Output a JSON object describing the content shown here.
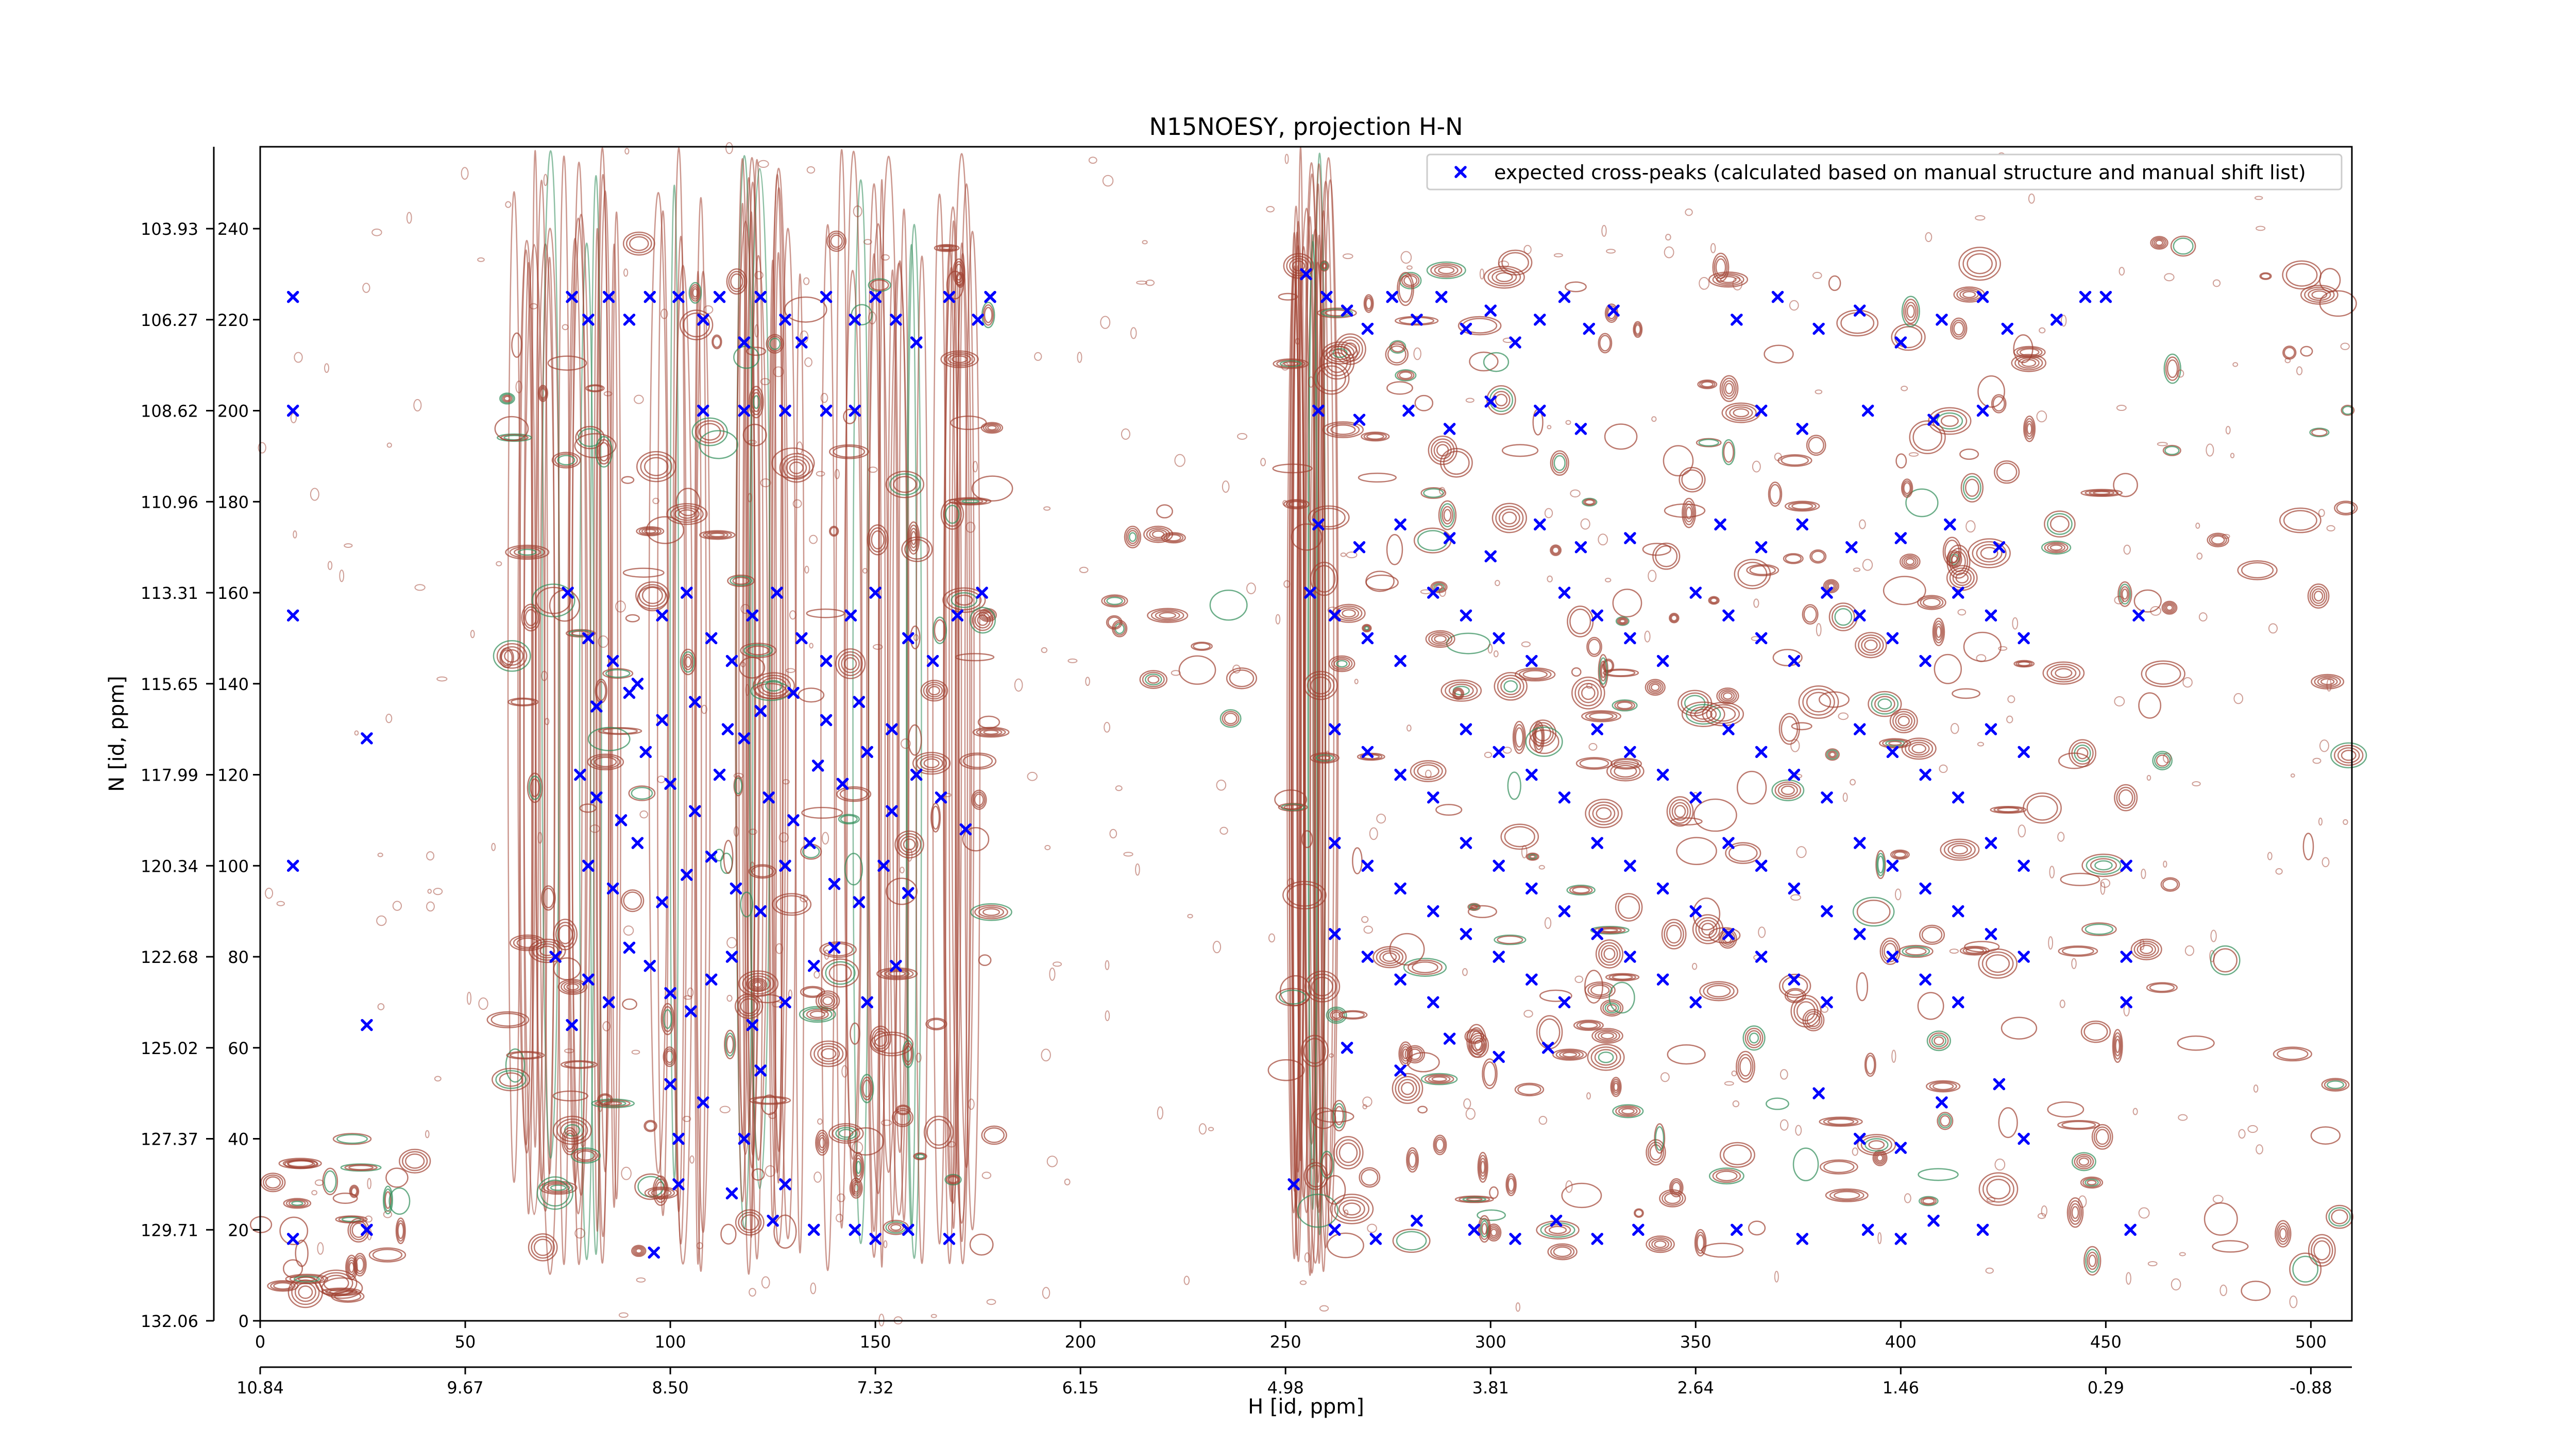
{
  "chart_data": {
    "type": "scatter",
    "title": "N15NOESY, projection H-N",
    "xlabel": "H [id, ppm]",
    "ylabel": "N [id, ppm]",
    "xlim": [
      0,
      510
    ],
    "ylim": [
      0,
      258
    ],
    "xticks_index": [
      "0",
      "50",
      "100",
      "150",
      "200",
      "250",
      "300",
      "350",
      "400",
      "450",
      "500"
    ],
    "xticks_ppm": [
      "10.84",
      "9.67",
      "8.50",
      "7.32",
      "6.15",
      "4.98",
      "3.81",
      "2.64",
      "1.46",
      "0.29",
      "-0.88"
    ],
    "yticks_index": [
      "0",
      "20",
      "40",
      "60",
      "80",
      "100",
      "120",
      "140",
      "160",
      "180",
      "200",
      "220",
      "240"
    ],
    "yticks_ppm": [
      "132.06",
      "129.71",
      "127.37",
      "125.02",
      "122.68",
      "120.34",
      "117.99",
      "115.65",
      "113.31",
      "110.96",
      "108.62",
      "106.27",
      "103.93"
    ],
    "legend": {
      "placement": "upper-right",
      "label": "expected cross-peaks (calculated based on manual structure and manual shift list)"
    },
    "grid": false,
    "background": "contour spectrum (positive levels brown, negative levels green)",
    "series": [
      {
        "name": "expected cross-peaks (calculated based on manual structure and manual shift list)",
        "marker": "x",
        "color": "#0000ff",
        "points": [
          [
            8,
            225
          ],
          [
            8,
            200
          ],
          [
            8,
            155
          ],
          [
            8,
            100
          ],
          [
            8,
            18
          ],
          [
            26,
            128
          ],
          [
            26,
            65
          ],
          [
            26,
            20
          ],
          [
            76,
            225
          ],
          [
            80,
            220
          ],
          [
            85,
            225
          ],
          [
            90,
            220
          ],
          [
            95,
            225
          ],
          [
            102,
            225
          ],
          [
            108,
            220
          ],
          [
            112,
            225
          ],
          [
            118,
            215
          ],
          [
            122,
            225
          ],
          [
            128,
            220
          ],
          [
            132,
            215
          ],
          [
            138,
            225
          ],
          [
            145,
            220
          ],
          [
            150,
            225
          ],
          [
            155,
            220
          ],
          [
            160,
            215
          ],
          [
            168,
            225
          ],
          [
            175,
            220
          ],
          [
            178,
            225
          ],
          [
            108,
            200
          ],
          [
            118,
            200
          ],
          [
            128,
            200
          ],
          [
            138,
            200
          ],
          [
            145,
            200
          ],
          [
            72,
            80
          ],
          [
            76,
            65
          ],
          [
            80,
            75
          ],
          [
            85,
            70
          ],
          [
            90,
            82
          ],
          [
            95,
            78
          ],
          [
            100,
            72
          ],
          [
            105,
            68
          ],
          [
            110,
            75
          ],
          [
            115,
            80
          ],
          [
            120,
            65
          ],
          [
            128,
            70
          ],
          [
            135,
            78
          ],
          [
            140,
            82
          ],
          [
            148,
            70
          ],
          [
            155,
            78
          ],
          [
            100,
            52
          ],
          [
            102,
            40
          ],
          [
            108,
            48
          ],
          [
            118,
            40
          ],
          [
            122,
            55
          ],
          [
            128,
            30
          ],
          [
            135,
            20
          ],
          [
            145,
            20
          ],
          [
            150,
            18
          ],
          [
            158,
            20
          ],
          [
            168,
            18
          ],
          [
            96,
            15
          ],
          [
            102,
            30
          ],
          [
            115,
            28
          ],
          [
            125,
            22
          ],
          [
            75,
            160
          ],
          [
            80,
            150
          ],
          [
            86,
            145
          ],
          [
            92,
            140
          ],
          [
            98,
            155
          ],
          [
            104,
            160
          ],
          [
            110,
            150
          ],
          [
            115,
            145
          ],
          [
            120,
            155
          ],
          [
            126,
            160
          ],
          [
            132,
            150
          ],
          [
            138,
            145
          ],
          [
            144,
            155
          ],
          [
            150,
            160
          ],
          [
            158,
            150
          ],
          [
            164,
            145
          ],
          [
            170,
            155
          ],
          [
            176,
            160
          ],
          [
            78,
            120
          ],
          [
            82,
            115
          ],
          [
            88,
            110
          ],
          [
            94,
            125
          ],
          [
            100,
            118
          ],
          [
            106,
            112
          ],
          [
            112,
            120
          ],
          [
            118,
            128
          ],
          [
            124,
            115
          ],
          [
            130,
            110
          ],
          [
            136,
            122
          ],
          [
            142,
            118
          ],
          [
            148,
            125
          ],
          [
            154,
            112
          ],
          [
            160,
            120
          ],
          [
            166,
            115
          ],
          [
            172,
            108
          ],
          [
            80,
            100
          ],
          [
            86,
            95
          ],
          [
            92,
            105
          ],
          [
            98,
            92
          ],
          [
            104,
            98
          ],
          [
            110,
            102
          ],
          [
            116,
            95
          ],
          [
            122,
            90
          ],
          [
            128,
            100
          ],
          [
            134,
            105
          ],
          [
            140,
            96
          ],
          [
            146,
            92
          ],
          [
            152,
            100
          ],
          [
            158,
            94
          ],
          [
            82,
            135
          ],
          [
            90,
            138
          ],
          [
            98,
            132
          ],
          [
            106,
            136
          ],
          [
            114,
            130
          ],
          [
            122,
            134
          ],
          [
            130,
            138
          ],
          [
            138,
            132
          ],
          [
            146,
            136
          ],
          [
            154,
            130
          ],
          [
            255,
            230
          ],
          [
            260,
            225
          ],
          [
            265,
            222
          ],
          [
            270,
            218
          ],
          [
            276,
            225
          ],
          [
            282,
            220
          ],
          [
            288,
            225
          ],
          [
            294,
            218
          ],
          [
            300,
            222
          ],
          [
            306,
            215
          ],
          [
            312,
            220
          ],
          [
            318,
            225
          ],
          [
            324,
            218
          ],
          [
            330,
            222
          ],
          [
            258,
            200
          ],
          [
            268,
            198
          ],
          [
            280,
            200
          ],
          [
            290,
            196
          ],
          [
            300,
            202
          ],
          [
            312,
            200
          ],
          [
            322,
            196
          ],
          [
            258,
            175
          ],
          [
            268,
            170
          ],
          [
            278,
            175
          ],
          [
            290,
            172
          ],
          [
            300,
            168
          ],
          [
            312,
            175
          ],
          [
            322,
            170
          ],
          [
            334,
            172
          ],
          [
            256,
            160
          ],
          [
            262,
            155
          ],
          [
            270,
            150
          ],
          [
            278,
            145
          ],
          [
            286,
            160
          ],
          [
            294,
            155
          ],
          [
            302,
            150
          ],
          [
            310,
            145
          ],
          [
            318,
            160
          ],
          [
            326,
            155
          ],
          [
            334,
            150
          ],
          [
            342,
            145
          ],
          [
            350,
            160
          ],
          [
            358,
            155
          ],
          [
            366,
            150
          ],
          [
            374,
            145
          ],
          [
            382,
            160
          ],
          [
            390,
            155
          ],
          [
            398,
            150
          ],
          [
            406,
            145
          ],
          [
            414,
            160
          ],
          [
            422,
            155
          ],
          [
            430,
            150
          ],
          [
            262,
            130
          ],
          [
            270,
            125
          ],
          [
            278,
            120
          ],
          [
            286,
            115
          ],
          [
            294,
            130
          ],
          [
            302,
            125
          ],
          [
            310,
            120
          ],
          [
            318,
            115
          ],
          [
            326,
            130
          ],
          [
            334,
            125
          ],
          [
            342,
            120
          ],
          [
            350,
            115
          ],
          [
            358,
            130
          ],
          [
            366,
            125
          ],
          [
            374,
            120
          ],
          [
            382,
            115
          ],
          [
            390,
            130
          ],
          [
            398,
            125
          ],
          [
            406,
            120
          ],
          [
            414,
            115
          ],
          [
            422,
            130
          ],
          [
            430,
            125
          ],
          [
            262,
            105
          ],
          [
            270,
            100
          ],
          [
            278,
            95
          ],
          [
            286,
            90
          ],
          [
            294,
            105
          ],
          [
            302,
            100
          ],
          [
            310,
            95
          ],
          [
            318,
            90
          ],
          [
            326,
            105
          ],
          [
            334,
            100
          ],
          [
            342,
            95
          ],
          [
            350,
            90
          ],
          [
            358,
            105
          ],
          [
            366,
            100
          ],
          [
            374,
            95
          ],
          [
            382,
            90
          ],
          [
            390,
            105
          ],
          [
            398,
            100
          ],
          [
            406,
            95
          ],
          [
            414,
            90
          ],
          [
            422,
            105
          ],
          [
            430,
            100
          ],
          [
            262,
            85
          ],
          [
            270,
            80
          ],
          [
            278,
            75
          ],
          [
            286,
            70
          ],
          [
            294,
            85
          ],
          [
            302,
            80
          ],
          [
            310,
            75
          ],
          [
            318,
            70
          ],
          [
            326,
            85
          ],
          [
            334,
            80
          ],
          [
            342,
            75
          ],
          [
            350,
            70
          ],
          [
            358,
            85
          ],
          [
            366,
            80
          ],
          [
            374,
            75
          ],
          [
            382,
            70
          ],
          [
            390,
            85
          ],
          [
            398,
            80
          ],
          [
            406,
            75
          ],
          [
            414,
            70
          ],
          [
            422,
            85
          ],
          [
            430,
            80
          ],
          [
            265,
            60
          ],
          [
            278,
            55
          ],
          [
            290,
            62
          ],
          [
            302,
            58
          ],
          [
            314,
            60
          ],
          [
            360,
            220
          ],
          [
            370,
            225
          ],
          [
            380,
            218
          ],
          [
            390,
            222
          ],
          [
            400,
            215
          ],
          [
            410,
            220
          ],
          [
            420,
            225
          ],
          [
            426,
            218
          ],
          [
            438,
            220
          ],
          [
            445,
            225
          ],
          [
            366,
            200
          ],
          [
            376,
            196
          ],
          [
            392,
            200
          ],
          [
            408,
            198
          ],
          [
            420,
            200
          ],
          [
            356,
            175
          ],
          [
            366,
            170
          ],
          [
            376,
            175
          ],
          [
            388,
            170
          ],
          [
            400,
            172
          ],
          [
            412,
            175
          ],
          [
            424,
            170
          ],
          [
            380,
            50
          ],
          [
            390,
            40
          ],
          [
            400,
            38
          ],
          [
            410,
            48
          ],
          [
            424,
            52
          ],
          [
            430,
            40
          ],
          [
            360,
            20
          ],
          [
            376,
            18
          ],
          [
            392,
            20
          ],
          [
            400,
            18
          ],
          [
            408,
            22
          ],
          [
            420,
            20
          ],
          [
            252,
            30
          ],
          [
            262,
            20
          ],
          [
            272,
            18
          ],
          [
            282,
            22
          ],
          [
            296,
            20
          ],
          [
            306,
            18
          ],
          [
            316,
            22
          ],
          [
            326,
            18
          ],
          [
            336,
            20
          ],
          [
            450,
            225
          ],
          [
            455,
            100
          ],
          [
            455,
            80
          ],
          [
            455,
            70
          ],
          [
            456,
            20
          ],
          [
            458,
            155
          ]
        ]
      }
    ]
  }
}
